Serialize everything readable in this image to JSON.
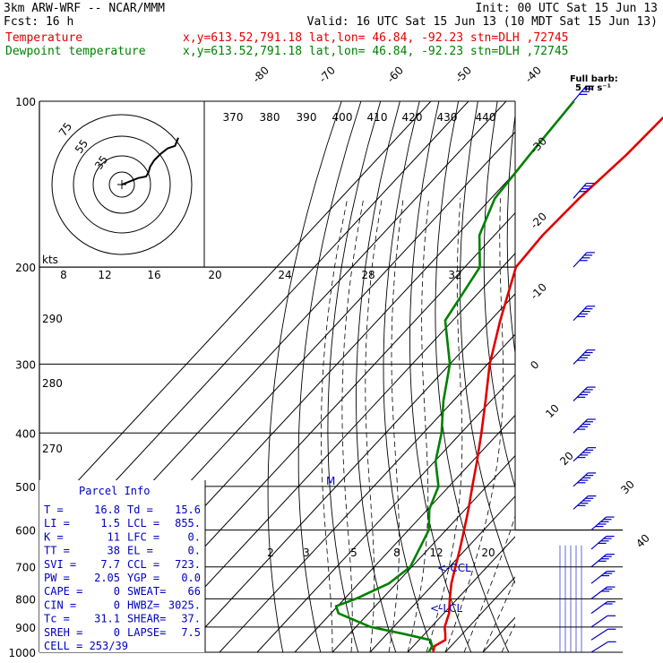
{
  "header": {
    "left1": "3km ARW-WRF -- NCAR/MMM",
    "init": "Init: 00 UTC Sat 15 Jun 13",
    "left2": "Fcst:   16 h",
    "valid": "Valid: 16 UTC Sat 15 Jun 13 (10 MDT Sat 15 Jun 13)",
    "temp_label": "Temperature",
    "dew_label": "Dewpoint temperature",
    "loc_info": "x,y=613.52,791.18   lat,lon= 46.84, -92.23   stn=DLH ,72745"
  },
  "colors": {
    "temperature": "#e00000",
    "dewpoint": "#008000",
    "text": "#000000",
    "wind": "#0000c0",
    "panel": "#000080"
  },
  "barb_legend": [
    "Full barb:",
    "5 m s⁻¹"
  ],
  "hodograph": {
    "ring_labels": [
      "75",
      "55",
      "35"
    ],
    "units": "kts"
  },
  "parcel_info": {
    "title": "Parcel Info",
    "rows": [
      [
        "T  =",
        "16.8",
        "Td =",
        "15.6"
      ],
      [
        "LI =",
        "1.5",
        "LCL =",
        "855."
      ],
      [
        "K  =",
        "11",
        "LFC =",
        "0."
      ],
      [
        "TT =",
        "38",
        "EL  =",
        "0."
      ],
      [
        "SVI =",
        "7.7",
        "CCL =",
        "723."
      ],
      [
        "PW =",
        "2.05",
        "YGP =",
        "0.0"
      ],
      [
        "CAPE =",
        "0",
        "SWEAT=",
        "66"
      ],
      [
        "CIN =",
        "0",
        "HWBZ=",
        "3025."
      ],
      [
        "Tc =",
        "31.1",
        "SHEAR=",
        "37."
      ],
      [
        "SREH =",
        "0",
        "LAPSE=",
        "7.5"
      ]
    ],
    "cell": "CELL = 253/39"
  },
  "level_markers": {
    "ccl": "<-CCL",
    "lcl": "<-LCL",
    "m": "M"
  },
  "chart_data": {
    "type": "line",
    "y_axis": {
      "label": "Pressure (hPa)",
      "ticks": [
        100,
        200,
        300,
        400,
        500,
        600,
        700,
        800,
        900,
        1000
      ],
      "scale": "log"
    },
    "isotherm_labels": [
      -80,
      -70,
      -60,
      -50,
      -40,
      -30,
      -20,
      -10,
      0,
      10,
      20,
      30,
      40
    ],
    "theta_labels": [
      370,
      380,
      390,
      400,
      410,
      420,
      430,
      440
    ],
    "mixing_ratio_upper": [
      8,
      12,
      16,
      20,
      24,
      28,
      32
    ],
    "mixing_ratio_lower": [
      2,
      3,
      5,
      8,
      12,
      20
    ],
    "dry_adiabat_left_labels": [
      290,
      280,
      270
    ],
    "series": [
      {
        "name": "Temperature",
        "points": [
          [
            1000,
            16.8
          ],
          [
            975,
            15.6
          ],
          [
            950,
            17.0
          ],
          [
            925,
            15.4
          ],
          [
            900,
            13.6
          ],
          [
            850,
            11.4
          ],
          [
            800,
            8.0
          ],
          [
            750,
            4.6
          ],
          [
            700,
            1.6
          ],
          [
            650,
            -1.6
          ],
          [
            600,
            -5.2
          ],
          [
            550,
            -9.2
          ],
          [
            500,
            -13.8
          ],
          [
            450,
            -18.8
          ],
          [
            400,
            -24.6
          ],
          [
            350,
            -31.4
          ],
          [
            300,
            -39.4
          ],
          [
            250,
            -47.4
          ],
          [
            200,
            -56.4
          ],
          [
            175,
            -57.2
          ],
          [
            150,
            -56.6
          ],
          [
            125,
            -54.8
          ],
          [
            100,
            -54.0
          ]
        ]
      },
      {
        "name": "Dewpoint temperature",
        "points": [
          [
            1000,
            15.6
          ],
          [
            975,
            15.0
          ],
          [
            950,
            13.0
          ],
          [
            925,
            4.0
          ],
          [
            900,
            -6.0
          ],
          [
            850,
            -18.0
          ],
          [
            825,
            -20.4
          ],
          [
            800,
            -17.0
          ],
          [
            750,
            -12.0
          ],
          [
            700,
            -10.4
          ],
          [
            650,
            -12.4
          ],
          [
            600,
            -14.6
          ],
          [
            550,
            -19.6
          ],
          [
            500,
            -22.8
          ],
          [
            450,
            -29.8
          ],
          [
            400,
            -35.2
          ],
          [
            350,
            -42.6
          ],
          [
            300,
            -50.0
          ],
          [
            250,
            -62.0
          ],
          [
            200,
            -66.0
          ],
          [
            175,
            -74.0
          ],
          [
            150,
            -79.0
          ],
          [
            125,
            -80.5
          ],
          [
            100,
            -82.0
          ]
        ]
      }
    ],
    "wind_profile": [
      [
        1000,
        3,
        5
      ],
      [
        950,
        8,
        8
      ],
      [
        900,
        20,
        12
      ],
      [
        850,
        33,
        15
      ],
      [
        800,
        45,
        18
      ],
      [
        750,
        55,
        20
      ],
      [
        700,
        75,
        25
      ],
      [
        650,
        80,
        27
      ],
      [
        600,
        82,
        28
      ],
      [
        550,
        83,
        30
      ],
      [
        500,
        82,
        32
      ],
      [
        450,
        84,
        33
      ],
      [
        400,
        83,
        35
      ],
      [
        350,
        82,
        37
      ],
      [
        300,
        82,
        39
      ],
      [
        250,
        81,
        41
      ],
      [
        200,
        80,
        44
      ],
      [
        150,
        78,
        48
      ],
      [
        100,
        75,
        50
      ]
    ],
    "hodograph_points": [
      [
        0,
        0
      ],
      [
        10,
        4
      ],
      [
        20,
        8
      ],
      [
        30,
        10
      ],
      [
        33,
        15
      ],
      [
        35,
        22
      ],
      [
        40,
        30
      ],
      [
        48,
        38
      ],
      [
        57,
        45
      ],
      [
        66,
        48
      ],
      [
        70,
        58
      ]
    ]
  }
}
